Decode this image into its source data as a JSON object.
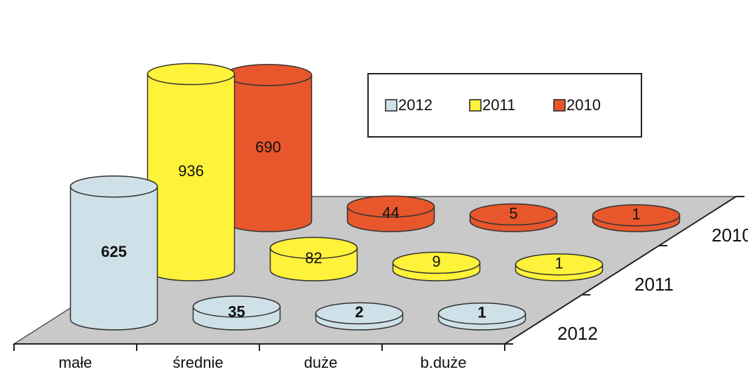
{
  "chart_data": {
    "type": "bar3d",
    "categories": [
      "małe",
      "średnie",
      "duże",
      "b.duże"
    ],
    "series": [
      {
        "name": "2012",
        "color": "#cfe1e8",
        "values": [
          625,
          35,
          2,
          1
        ]
      },
      {
        "name": "2011",
        "color": "#fff23a",
        "values": [
          936,
          82,
          9,
          1
        ]
      },
      {
        "name": "2010",
        "color": "#e8562c",
        "values": [
          690,
          44,
          5,
          1
        ]
      }
    ],
    "legend": "top-right"
  }
}
